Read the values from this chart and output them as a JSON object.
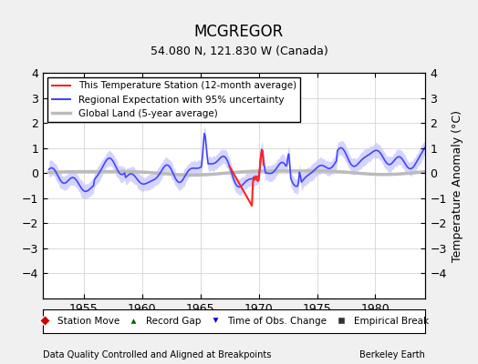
{
  "title": "MCGREGOR",
  "subtitle": "54.080 N, 121.830 W (Canada)",
  "ylabel": "Temperature Anomaly (°C)",
  "xlabel_note": "Data Quality Controlled and Aligned at Breakpoints",
  "credit": "Berkeley Earth",
  "ylim": [
    -5,
    4
  ],
  "yticks": [
    -4,
    -3,
    -2,
    -1,
    0,
    1,
    2,
    3,
    4
  ],
  "year_start": 1952,
  "year_end": 1984,
  "xticks": [
    1955,
    1960,
    1965,
    1970,
    1975,
    1980
  ],
  "background_color": "#f0f0f0",
  "plot_bg_color": "#ffffff",
  "regional_color": "#4444ff",
  "regional_fill_color": "#aaaaff",
  "station_color": "#ff2222",
  "global_color": "#bbbbbb",
  "legend_items": [
    {
      "label": "This Temperature Station (12-month average)",
      "color": "#ff2222",
      "lw": 1.5
    },
    {
      "label": "Regional Expectation with 95% uncertainty",
      "color": "#4444ff",
      "lw": 1.5
    },
    {
      "label": "Global Land (5-year average)",
      "color": "#bbbbbb",
      "lw": 2.5
    }
  ],
  "marker_legend": [
    {
      "label": "Station Move",
      "marker": "D",
      "color": "#cc0000"
    },
    {
      "label": "Record Gap",
      "marker": "^",
      "color": "#006600"
    },
    {
      "label": "Time of Obs. Change",
      "marker": "v",
      "color": "#0000cc"
    },
    {
      "label": "Empirical Break",
      "marker": "s",
      "color": "#333333"
    }
  ]
}
